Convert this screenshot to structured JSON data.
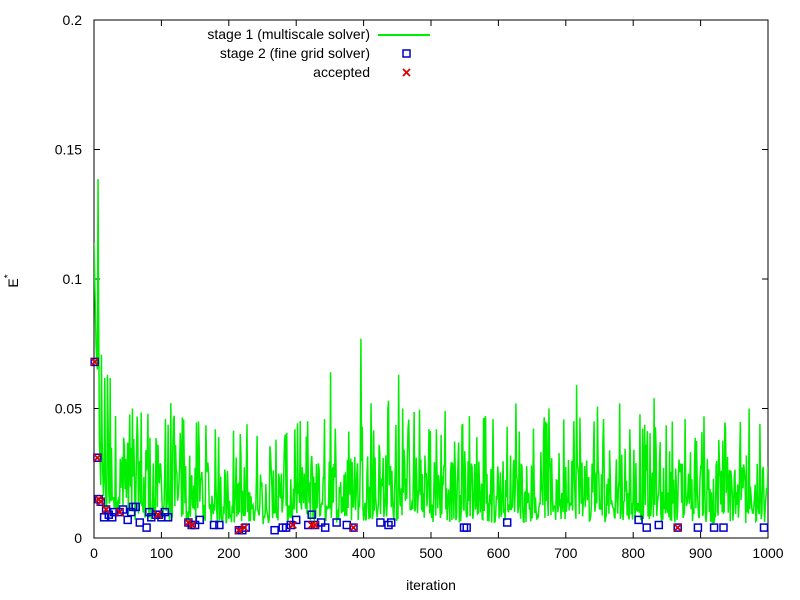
{
  "chart_data": {
    "type": "line",
    "title": "",
    "xlabel": "iteration",
    "ylabel": "E",
    "ylabel_superscript": "*",
    "xlim": [
      0,
      1000
    ],
    "ylim": [
      0,
      0.2
    ],
    "xticks": [
      0,
      100,
      200,
      300,
      400,
      500,
      600,
      700,
      800,
      900,
      1000
    ],
    "yticks": [
      0,
      0.05,
      0.1,
      0.15,
      0.2
    ],
    "ytick_labels": [
      "0",
      "0.05",
      "0.1",
      "0.15",
      "0.2"
    ],
    "grid": false,
    "legend_position": "top-left",
    "colors": {
      "stage1": "#00ee00",
      "stage2": "#0000cc",
      "accepted": "#dd0000"
    },
    "series": [
      {
        "name": "stage 1 (multiscale solver)",
        "kind": "line",
        "baseline": 0.017,
        "anchors": [
          [
            0,
            0.114
          ],
          [
            3,
            0.075
          ],
          [
            6,
            0.055
          ],
          [
            10,
            0.045
          ],
          [
            15,
            0.03
          ],
          [
            20,
            0.024
          ],
          [
            30,
            0.022
          ],
          [
            40,
            0.021
          ],
          [
            60,
            0.02
          ],
          [
            80,
            0.019
          ],
          [
            120,
            0.018
          ],
          [
            180,
            0.016
          ],
          [
            260,
            0.015
          ],
          [
            300,
            0.016
          ],
          [
            360,
            0.017
          ],
          [
            400,
            0.019
          ],
          [
            460,
            0.018
          ],
          [
            500,
            0.017
          ],
          [
            560,
            0.017
          ],
          [
            600,
            0.016
          ],
          [
            700,
            0.018
          ],
          [
            800,
            0.017
          ],
          [
            900,
            0.016
          ],
          [
            1000,
            0.016
          ]
        ],
        "spikes": [
          [
            20,
            0.063
          ],
          [
            57,
            0.05
          ],
          [
            80,
            0.048
          ],
          [
            106,
            0.046
          ],
          [
            155,
            0.045
          ],
          [
            270,
            0.038
          ],
          [
            298,
            0.042
          ],
          [
            351,
            0.064
          ],
          [
            396,
            0.077
          ],
          [
            411,
            0.052
          ],
          [
            437,
            0.053
          ],
          [
            452,
            0.063
          ],
          [
            458,
            0.05
          ],
          [
            497,
            0.042
          ],
          [
            521,
            0.049
          ],
          [
            547,
            0.044
          ],
          [
            581,
            0.047
          ],
          [
            626,
            0.052
          ],
          [
            670,
            0.045
          ],
          [
            716,
            0.059
          ],
          [
            742,
            0.045
          ],
          [
            780,
            0.052
          ],
          [
            795,
            0.042
          ],
          [
            831,
            0.054
          ],
          [
            858,
            0.045
          ],
          [
            877,
            0.046
          ],
          [
            905,
            0.047
          ],
          [
            937,
            0.042
          ],
          [
            972,
            0.05
          ]
        ]
      },
      {
        "name": "stage 2 (fine grid solver)",
        "kind": "scatter",
        "points": [
          [
            1,
            0.068
          ],
          [
            5,
            0.031
          ],
          [
            7,
            0.015
          ],
          [
            10,
            0.014
          ],
          [
            15,
            0.008
          ],
          [
            18,
            0.011
          ],
          [
            22,
            0.009
          ],
          [
            27,
            0.008
          ],
          [
            30,
            0.01
          ],
          [
            38,
            0.01
          ],
          [
            43,
            0.011
          ],
          [
            50,
            0.007
          ],
          [
            55,
            0.01
          ],
          [
            58,
            0.012
          ],
          [
            62,
            0.012
          ],
          [
            68,
            0.006
          ],
          [
            78,
            0.004
          ],
          [
            82,
            0.01
          ],
          [
            85,
            0.008
          ],
          [
            92,
            0.009
          ],
          [
            96,
            0.009
          ],
          [
            100,
            0.008
          ],
          [
            105,
            0.01
          ],
          [
            110,
            0.008
          ],
          [
            140,
            0.006
          ],
          [
            145,
            0.005
          ],
          [
            150,
            0.005
          ],
          [
            157,
            0.007
          ],
          [
            178,
            0.005
          ],
          [
            186,
            0.005
          ],
          [
            215,
            0.003
          ],
          [
            220,
            0.003
          ],
          [
            225,
            0.004
          ],
          [
            268,
            0.003
          ],
          [
            280,
            0.004
          ],
          [
            285,
            0.004
          ],
          [
            292,
            0.005
          ],
          [
            300,
            0.007
          ],
          [
            318,
            0.005
          ],
          [
            323,
            0.009
          ],
          [
            328,
            0.005
          ],
          [
            337,
            0.006
          ],
          [
            343,
            0.004
          ],
          [
            360,
            0.006
          ],
          [
            375,
            0.005
          ],
          [
            385,
            0.004
          ],
          [
            425,
            0.006
          ],
          [
            437,
            0.005
          ],
          [
            441,
            0.006
          ],
          [
            549,
            0.004
          ],
          [
            553,
            0.004
          ],
          [
            613,
            0.006
          ],
          [
            808,
            0.007
          ],
          [
            820,
            0.004
          ],
          [
            838,
            0.005
          ],
          [
            866,
            0.004
          ],
          [
            896,
            0.004
          ],
          [
            920,
            0.004
          ],
          [
            934,
            0.004
          ],
          [
            994,
            0.004
          ]
        ]
      },
      {
        "name": "accepted",
        "kind": "scatter",
        "points": [
          [
            1,
            0.068
          ],
          [
            5,
            0.031
          ],
          [
            7,
            0.015
          ],
          [
            10,
            0.014
          ],
          [
            18,
            0.011
          ],
          [
            38,
            0.01
          ],
          [
            95,
            0.009
          ],
          [
            140,
            0.006
          ],
          [
            146,
            0.005
          ],
          [
            215,
            0.003
          ],
          [
            223,
            0.004
          ],
          [
            295,
            0.005
          ],
          [
            323,
            0.005
          ],
          [
            328,
            0.005
          ],
          [
            385,
            0.004
          ],
          [
            866,
            0.004
          ]
        ]
      }
    ]
  }
}
